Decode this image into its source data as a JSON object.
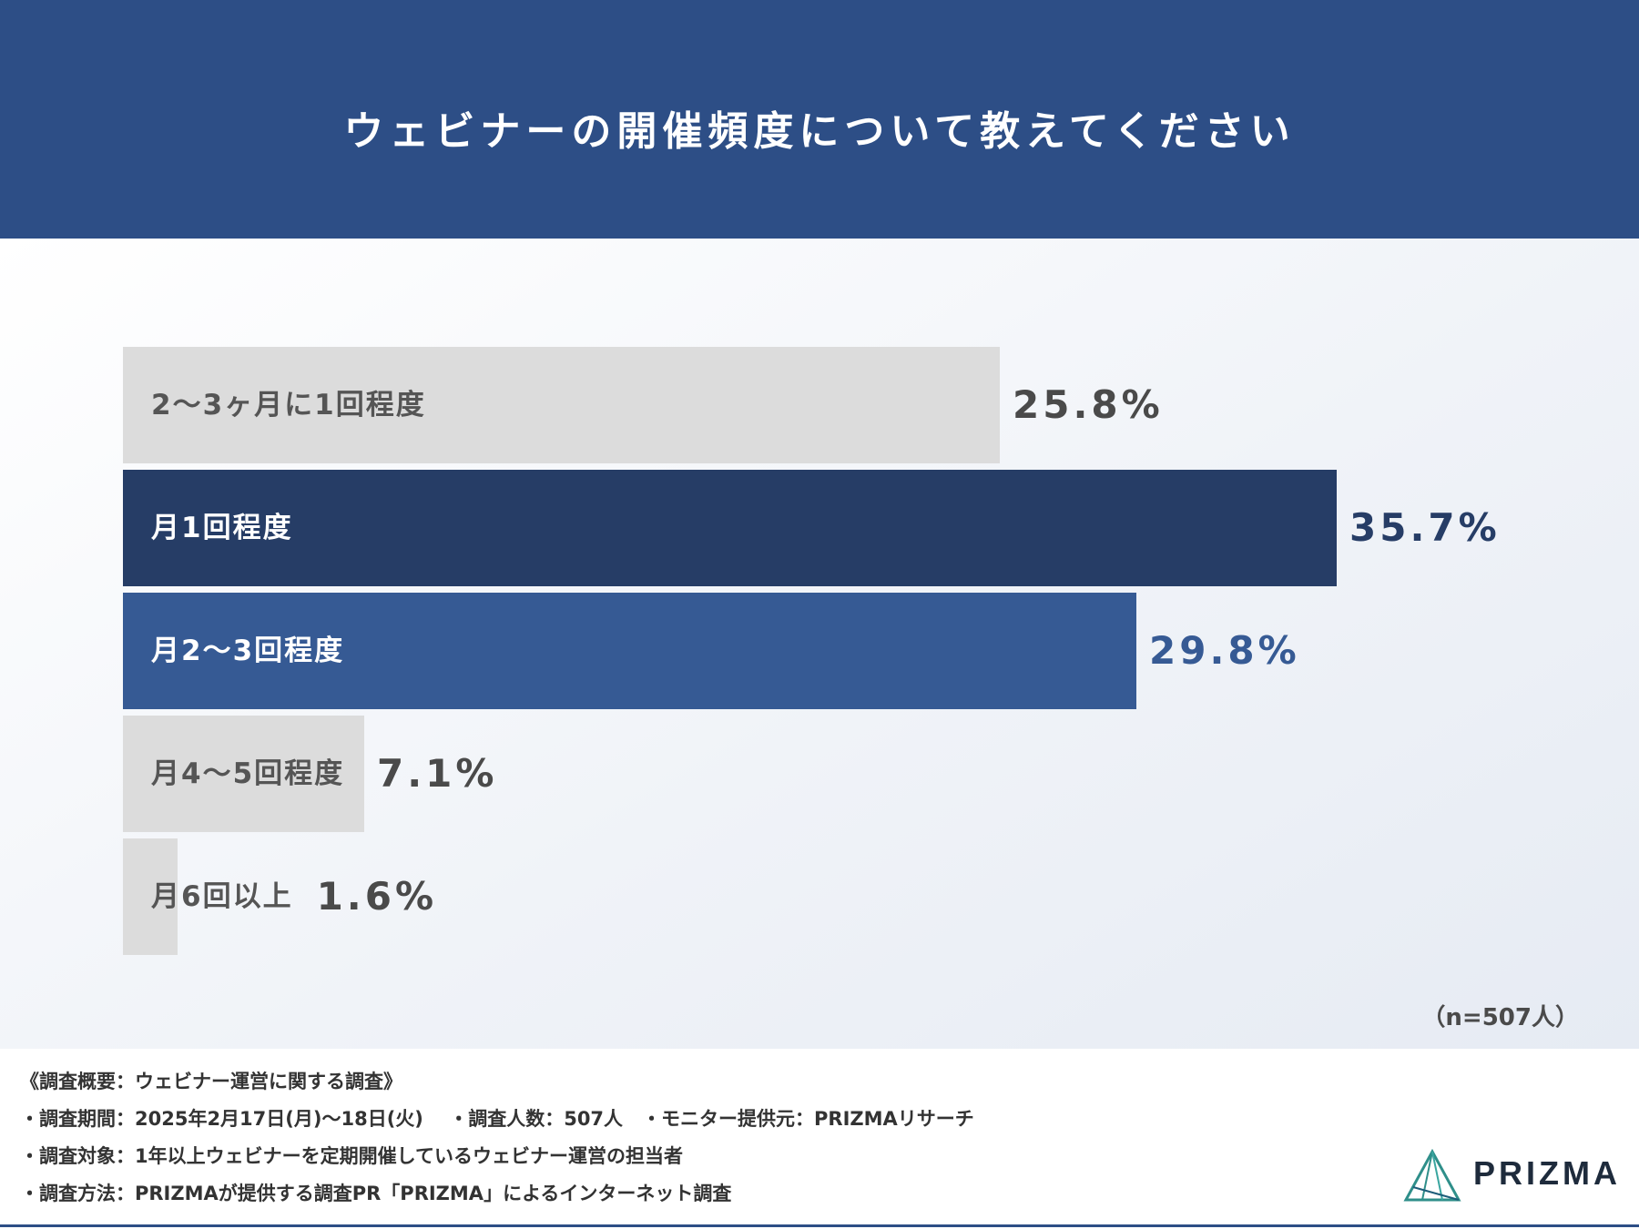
{
  "title": "ウェビナーの開催頻度について教えてください",
  "chart_data": {
    "type": "bar",
    "orientation": "horizontal",
    "categories": [
      "2〜3ヶ月に1回程度",
      "月1回程度",
      "月2〜3回程度",
      "月4〜5回程度",
      "月6回以上"
    ],
    "values": [
      25.8,
      35.7,
      29.8,
      7.1,
      1.6
    ],
    "value_labels": [
      "25.8%",
      "35.7%",
      "29.8%",
      "7.1%",
      "1.6%"
    ],
    "unit": "%",
    "bar_colors": [
      "#dcdcdc",
      "#263d66",
      "#365a94",
      "#dcdcdc",
      "#dcdcdc"
    ],
    "label_colors": [
      "#555555",
      "#ffffff",
      "#ffffff",
      "#555555",
      "#555555"
    ],
    "value_colors": [
      "#4a4a4a",
      "#263d66",
      "#365a94",
      "#4a4a4a",
      "#4a4a4a"
    ],
    "xlim": [
      0,
      35.7
    ],
    "grid": false
  },
  "sample_note": "（n=507人）",
  "footer": {
    "line1": "《調査概要：ウェビナー運営に関する調査》",
    "line2": "・調査期間：2025年2月17日(月)〜18日(火)　 ・調査人数：507人　・モニター提供元：PRIZMAリサーチ",
    "line3": "・調査対象：1年以上ウェビナーを定期開催しているウェビナー運営の担当者",
    "line4": "・調査方法：PRIZMAが提供する調査PR「PRIZMA」によるインターネット調査"
  },
  "logo": {
    "text": "PRIZMA",
    "icon": "prism-triangle-icon"
  },
  "colors": {
    "header_bg": "#2d4e86",
    "accent_dark": "#263d66",
    "accent_mid": "#365a94"
  }
}
